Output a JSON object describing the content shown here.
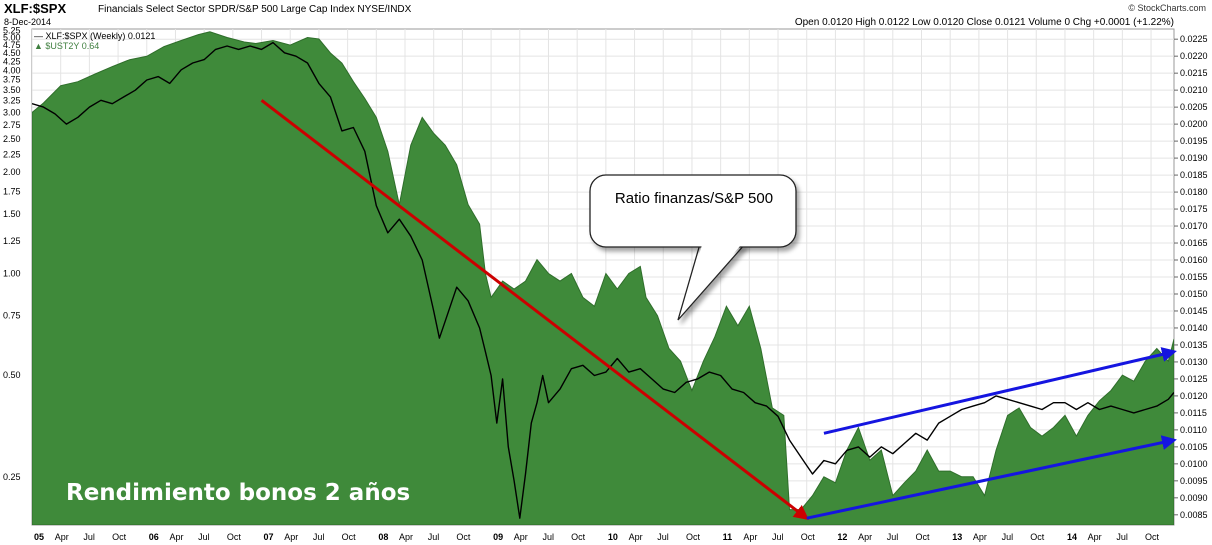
{
  "header": {
    "symbol": "XLF:$SPX",
    "description": "Financials Select Sector SPDR/S&P 500 Large Cap Index NYSE/INDX",
    "date": "8-Dec-2014",
    "brand": "© StockCharts.com",
    "ohlc_text": "Open 0.0120  High 0.0122  Low 0.0120  Close 0.0121  Volume 0  Chg +0.0001 (+1.22%)"
  },
  "legend": {
    "series1": "XLF:$SPX (Weekly) 0.0121",
    "series2": "$UST2Y 0.64"
  },
  "annotations": {
    "bubble": "Ratio finanzas/S&P 500",
    "bottom_label": "Rendimiento bonos 2 años"
  },
  "colors": {
    "area_fill": "#3f8a3a",
    "area_edge": "#2f6e2b",
    "ratio_line": "#000000",
    "red_arrow": "#cc0000",
    "blue_arrow": "#1515e0",
    "grid": "#e4e4e4"
  },
  "chart_data": {
    "type": "area",
    "x_tick_labels": [
      "05",
      "Apr",
      "Jul",
      "Oct",
      "06",
      "Apr",
      "Jul",
      "Oct",
      "07",
      "Apr",
      "Jul",
      "Oct",
      "08",
      "Apr",
      "Jul",
      "Oct",
      "09",
      "Apr",
      "Jul",
      "Oct",
      "10",
      "Apr",
      "Jul",
      "Oct",
      "11",
      "Apr",
      "Jul",
      "Oct",
      "12",
      "Apr",
      "Jul",
      "Oct",
      "13",
      "Apr",
      "Jul",
      "Oct",
      "14",
      "Apr",
      "Jul",
      "Oct"
    ],
    "x_range": [
      2005.0,
      2014.95
    ],
    "left_axis": {
      "label": "",
      "scale": "log",
      "ticks": [
        5.25,
        5.0,
        4.75,
        4.5,
        4.25,
        4.0,
        3.75,
        3.5,
        3.25,
        3.0,
        2.75,
        2.5,
        2.25,
        2.0,
        1.75,
        1.5,
        1.25,
        1.0,
        0.75,
        0.5,
        0.25
      ],
      "range": [
        0.18,
        5.3
      ]
    },
    "right_axis": {
      "label": "",
      "ticks": [
        0.0225,
        0.022,
        0.0215,
        0.021,
        0.0205,
        0.02,
        0.0195,
        0.019,
        0.0185,
        0.018,
        0.0175,
        0.017,
        0.0165,
        0.016,
        0.0155,
        0.015,
        0.0145,
        0.014,
        0.0135,
        0.013,
        0.0125,
        0.012,
        0.0115,
        0.011,
        0.0105,
        0.01,
        0.0095,
        0.009,
        0.0085
      ],
      "tick_labels": [
        "0.0225",
        "0.0220",
        "0.0215",
        "0.0210",
        "0.0205",
        "0.0200",
        "0.0195",
        "0.0190",
        "0.0185",
        "0.0180",
        "0.0175",
        "0.0170",
        "0.0165",
        "0.0160",
        "0.0155",
        "0.0150",
        "0.0145",
        "0.0140",
        "0.0135",
        "0.0130",
        "0.0125",
        "0.0120",
        "0.0115",
        "0.0110",
        "0.0105",
        "0.0100",
        "0.0095",
        "0.0090",
        "0.0085"
      ],
      "range": [
        0.0082,
        0.0228
      ]
    },
    "grid": true,
    "series": [
      {
        "name": "$UST2Y",
        "axis": "left",
        "style": "area",
        "points": [
          [
            2005.0,
            3.0
          ],
          [
            2005.1,
            3.2
          ],
          [
            2005.25,
            3.6
          ],
          [
            2005.4,
            3.7
          ],
          [
            2005.55,
            3.9
          ],
          [
            2005.7,
            4.1
          ],
          [
            2005.85,
            4.3
          ],
          [
            2006.0,
            4.4
          ],
          [
            2006.15,
            4.7
          ],
          [
            2006.3,
            4.9
          ],
          [
            2006.45,
            5.1
          ],
          [
            2006.55,
            5.2
          ],
          [
            2006.7,
            5.0
          ],
          [
            2006.85,
            4.85
          ],
          [
            2006.95,
            4.8
          ],
          [
            2007.1,
            4.9
          ],
          [
            2007.25,
            4.75
          ],
          [
            2007.4,
            5.0
          ],
          [
            2007.5,
            4.95
          ],
          [
            2007.6,
            4.5
          ],
          [
            2007.7,
            4.2
          ],
          [
            2007.8,
            3.7
          ],
          [
            2007.9,
            3.3
          ],
          [
            2008.0,
            2.9
          ],
          [
            2008.1,
            2.3
          ],
          [
            2008.2,
            1.6
          ],
          [
            2008.3,
            2.4
          ],
          [
            2008.4,
            2.9
          ],
          [
            2008.5,
            2.6
          ],
          [
            2008.6,
            2.4
          ],
          [
            2008.7,
            2.1
          ],
          [
            2008.8,
            1.6
          ],
          [
            2008.9,
            1.4
          ],
          [
            2008.95,
            1.0
          ],
          [
            2009.0,
            0.85
          ],
          [
            2009.1,
            0.95
          ],
          [
            2009.2,
            0.9
          ],
          [
            2009.3,
            0.95
          ],
          [
            2009.4,
            1.1
          ],
          [
            2009.5,
            1.0
          ],
          [
            2009.6,
            0.95
          ],
          [
            2009.7,
            1.0
          ],
          [
            2009.8,
            0.85
          ],
          [
            2009.9,
            0.8
          ],
          [
            2010.0,
            1.0
          ],
          [
            2010.1,
            0.9
          ],
          [
            2010.2,
            1.0
          ],
          [
            2010.3,
            1.05
          ],
          [
            2010.35,
            0.85
          ],
          [
            2010.45,
            0.75
          ],
          [
            2010.55,
            0.6
          ],
          [
            2010.65,
            0.55
          ],
          [
            2010.75,
            0.45
          ],
          [
            2010.85,
            0.55
          ],
          [
            2010.95,
            0.65
          ],
          [
            2011.05,
            0.8
          ],
          [
            2011.15,
            0.7
          ],
          [
            2011.25,
            0.8
          ],
          [
            2011.35,
            0.6
          ],
          [
            2011.45,
            0.4
          ],
          [
            2011.55,
            0.38
          ],
          [
            2011.6,
            0.2
          ],
          [
            2011.7,
            0.2
          ],
          [
            2011.8,
            0.22
          ],
          [
            2011.9,
            0.25
          ],
          [
            2012.0,
            0.24
          ],
          [
            2012.1,
            0.3
          ],
          [
            2012.2,
            0.35
          ],
          [
            2012.3,
            0.28
          ],
          [
            2012.4,
            0.3
          ],
          [
            2012.5,
            0.22
          ],
          [
            2012.6,
            0.24
          ],
          [
            2012.7,
            0.26
          ],
          [
            2012.8,
            0.3
          ],
          [
            2012.9,
            0.26
          ],
          [
            2013.0,
            0.26
          ],
          [
            2013.1,
            0.25
          ],
          [
            2013.2,
            0.25
          ],
          [
            2013.3,
            0.22
          ],
          [
            2013.4,
            0.3
          ],
          [
            2013.5,
            0.38
          ],
          [
            2013.6,
            0.4
          ],
          [
            2013.7,
            0.35
          ],
          [
            2013.8,
            0.33
          ],
          [
            2013.9,
            0.35
          ],
          [
            2014.0,
            0.38
          ],
          [
            2014.1,
            0.33
          ],
          [
            2014.2,
            0.38
          ],
          [
            2014.3,
            0.42
          ],
          [
            2014.4,
            0.45
          ],
          [
            2014.5,
            0.5
          ],
          [
            2014.6,
            0.48
          ],
          [
            2014.7,
            0.55
          ],
          [
            2014.8,
            0.6
          ],
          [
            2014.9,
            0.55
          ],
          [
            2014.95,
            0.64
          ]
        ]
      },
      {
        "name": "XLF:$SPX",
        "axis": "right",
        "style": "line",
        "points": [
          [
            2005.0,
            0.0206
          ],
          [
            2005.1,
            0.0205
          ],
          [
            2005.2,
            0.0203
          ],
          [
            2005.3,
            0.02
          ],
          [
            2005.4,
            0.0202
          ],
          [
            2005.5,
            0.0205
          ],
          [
            2005.6,
            0.0207
          ],
          [
            2005.7,
            0.0206
          ],
          [
            2005.8,
            0.0208
          ],
          [
            2005.9,
            0.021
          ],
          [
            2006.0,
            0.0213
          ],
          [
            2006.1,
            0.0214
          ],
          [
            2006.2,
            0.0212
          ],
          [
            2006.3,
            0.0216
          ],
          [
            2006.4,
            0.0218
          ],
          [
            2006.5,
            0.0219
          ],
          [
            2006.6,
            0.0222
          ],
          [
            2006.7,
            0.0223
          ],
          [
            2006.8,
            0.0222
          ],
          [
            2006.9,
            0.0223
          ],
          [
            2007.0,
            0.0222
          ],
          [
            2007.1,
            0.0224
          ],
          [
            2007.2,
            0.0221
          ],
          [
            2007.3,
            0.022
          ],
          [
            2007.4,
            0.0218
          ],
          [
            2007.5,
            0.0212
          ],
          [
            2007.6,
            0.0208
          ],
          [
            2007.7,
            0.0198
          ],
          [
            2007.8,
            0.0199
          ],
          [
            2007.9,
            0.0192
          ],
          [
            2008.0,
            0.0176
          ],
          [
            2008.1,
            0.0168
          ],
          [
            2008.2,
            0.0172
          ],
          [
            2008.3,
            0.0167
          ],
          [
            2008.4,
            0.016
          ],
          [
            2008.5,
            0.0145
          ],
          [
            2008.55,
            0.0137
          ],
          [
            2008.6,
            0.0142
          ],
          [
            2008.7,
            0.0152
          ],
          [
            2008.8,
            0.0148
          ],
          [
            2008.9,
            0.014
          ],
          [
            2008.95,
            0.0133
          ],
          [
            2009.0,
            0.0126
          ],
          [
            2009.05,
            0.0112
          ],
          [
            2009.1,
            0.0125
          ],
          [
            2009.15,
            0.0105
          ],
          [
            2009.2,
            0.0095
          ],
          [
            2009.25,
            0.0084
          ],
          [
            2009.3,
            0.0097
          ],
          [
            2009.35,
            0.0112
          ],
          [
            2009.4,
            0.0118
          ],
          [
            2009.45,
            0.0126
          ],
          [
            2009.5,
            0.0118
          ],
          [
            2009.6,
            0.0122
          ],
          [
            2009.7,
            0.0128
          ],
          [
            2009.8,
            0.0129
          ],
          [
            2009.9,
            0.0126
          ],
          [
            2010.0,
            0.0127
          ],
          [
            2010.1,
            0.0131
          ],
          [
            2010.2,
            0.0127
          ],
          [
            2010.3,
            0.0128
          ],
          [
            2010.4,
            0.0125
          ],
          [
            2010.5,
            0.0122
          ],
          [
            2010.6,
            0.0121
          ],
          [
            2010.7,
            0.0124
          ],
          [
            2010.8,
            0.0125
          ],
          [
            2010.9,
            0.0127
          ],
          [
            2011.0,
            0.0126
          ],
          [
            2011.1,
            0.0122
          ],
          [
            2011.2,
            0.0121
          ],
          [
            2011.3,
            0.0118
          ],
          [
            2011.4,
            0.0117
          ],
          [
            2011.5,
            0.0114
          ],
          [
            2011.6,
            0.0107
          ],
          [
            2011.7,
            0.0102
          ],
          [
            2011.8,
            0.0097
          ],
          [
            2011.9,
            0.0101
          ],
          [
            2012.0,
            0.01
          ],
          [
            2012.1,
            0.0104
          ],
          [
            2012.2,
            0.0105
          ],
          [
            2012.3,
            0.0102
          ],
          [
            2012.4,
            0.0105
          ],
          [
            2012.5,
            0.0103
          ],
          [
            2012.6,
            0.0106
          ],
          [
            2012.7,
            0.0109
          ],
          [
            2012.8,
            0.0107
          ],
          [
            2012.9,
            0.0112
          ],
          [
            2013.0,
            0.0114
          ],
          [
            2013.1,
            0.0116
          ],
          [
            2013.2,
            0.0117
          ],
          [
            2013.3,
            0.0118
          ],
          [
            2013.4,
            0.012
          ],
          [
            2013.5,
            0.0119
          ],
          [
            2013.6,
            0.0118
          ],
          [
            2013.7,
            0.0117
          ],
          [
            2013.8,
            0.0116
          ],
          [
            2013.9,
            0.0118
          ],
          [
            2014.0,
            0.0118
          ],
          [
            2014.1,
            0.0116
          ],
          [
            2014.2,
            0.0118
          ],
          [
            2014.3,
            0.0116
          ],
          [
            2014.4,
            0.0117
          ],
          [
            2014.5,
            0.0116
          ],
          [
            2014.6,
            0.0115
          ],
          [
            2014.7,
            0.0116
          ],
          [
            2014.8,
            0.0117
          ],
          [
            2014.9,
            0.0119
          ],
          [
            2014.95,
            0.0121
          ]
        ]
      }
    ],
    "trend_arrows": [
      {
        "color": "red",
        "from": [
          2007.0,
          0.0207
        ],
        "to": [
          2011.75,
          0.0084
        ]
      },
      {
        "color": "blue",
        "from": [
          2011.75,
          0.0084
        ],
        "to": [
          2014.95,
          0.0107
        ]
      },
      {
        "color": "blue",
        "from": [
          2011.9,
          0.0109
        ],
        "to": [
          2014.95,
          0.0133
        ]
      }
    ]
  }
}
